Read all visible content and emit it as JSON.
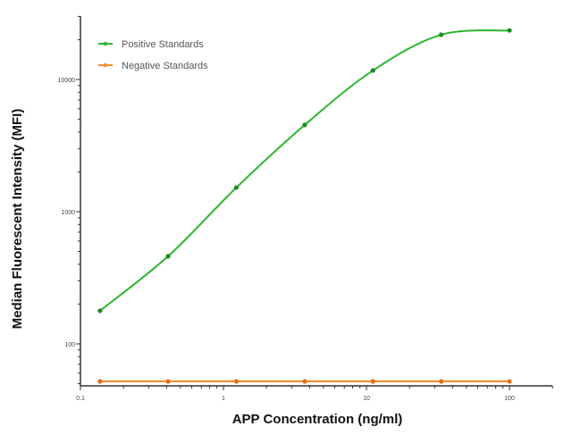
{
  "chart_data": {
    "type": "line",
    "title": "",
    "xlabel": "APP Concentration (ng/ml)",
    "ylabel": "Median  Fluorescent Intensity  (MFI)",
    "xscale": "log",
    "yscale": "log",
    "xlim": [
      0.1,
      200
    ],
    "ylim": [
      48,
      30000
    ],
    "x_ticks": [
      "0.1",
      "1",
      "10",
      "100"
    ],
    "y_ticks": [
      "100",
      "1000",
      "10000"
    ],
    "grid": false,
    "legend_position": "upper-left",
    "x": [
      0.137,
      0.41,
      1.23,
      3.7,
      11.1,
      33.3,
      100
    ],
    "series": [
      {
        "name": "Positive Standards",
        "color": "#2db52d",
        "values": [
          178,
          460,
          1520,
          4530,
          11700,
          21800,
          23500
        ]
      },
      {
        "name": "Negative Standards",
        "color": "#f08a2c",
        "values": [
          52,
          52,
          52,
          52,
          52,
          52,
          52
        ]
      }
    ]
  },
  "legend": {
    "items": [
      {
        "label": "Positive Standards",
        "color": "#2db52d"
      },
      {
        "label": "Negative Standards",
        "color": "#f08a2c"
      }
    ]
  },
  "axes": {
    "x_title": "APP Concentration (ng/ml)",
    "y_title": "Median  Fluorescent Intensity  (MFI)",
    "x_ticks": [
      "0.1",
      "1",
      "10",
      "100"
    ],
    "y_ticks": [
      "100",
      "1000",
      "10000"
    ]
  }
}
